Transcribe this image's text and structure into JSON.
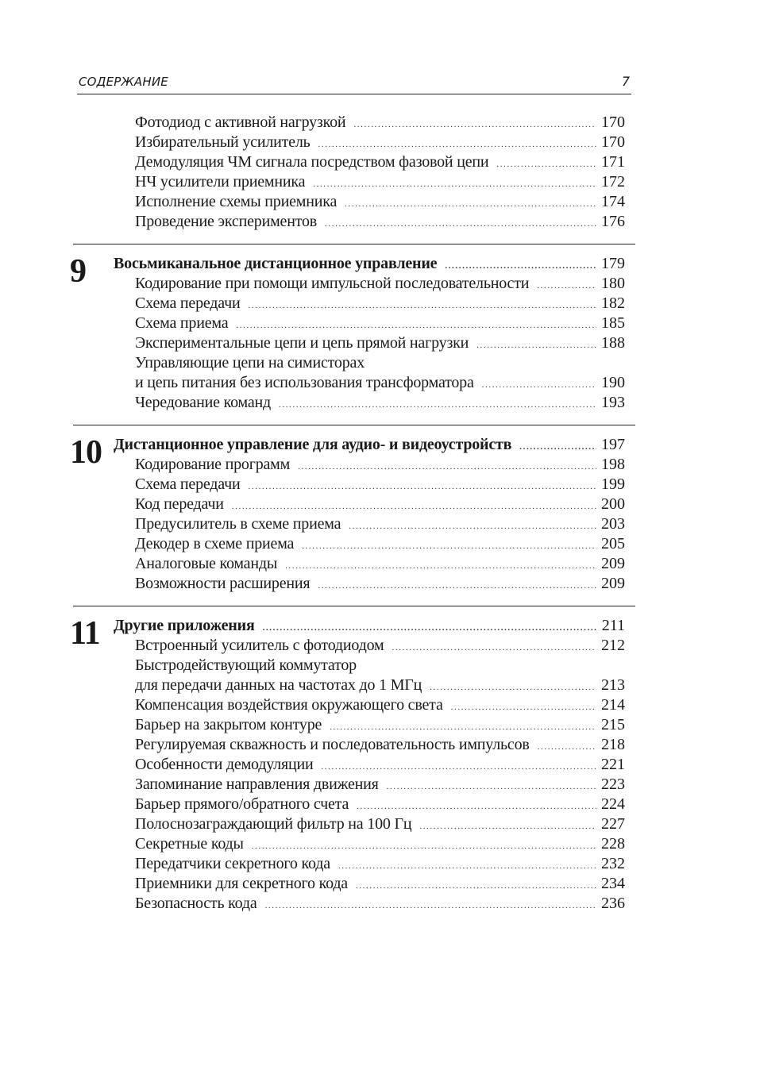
{
  "header": {
    "title": "СОДЕРЖАНИЕ",
    "page": "7"
  },
  "intro_entries": [
    {
      "lines": [
        "Фотодиод с активной нагрузкой"
      ],
      "page": "170"
    },
    {
      "lines": [
        "Избирательный усилитель"
      ],
      "page": "170"
    },
    {
      "lines": [
        "Демодуляция ЧМ сигнала посредством фазовой цепи"
      ],
      "page": "171"
    },
    {
      "lines": [
        "НЧ усилители приемника"
      ],
      "page": "172"
    },
    {
      "lines": [
        "Исполнение схемы приемника"
      ],
      "page": "174"
    },
    {
      "lines": [
        "Проведение экспериментов"
      ],
      "page": "176"
    }
  ],
  "chapters": [
    {
      "number": "9",
      "title": "Восьмиканальное дистанционное управление",
      "page": "179",
      "entries": [
        {
          "lines": [
            "Кодирование при помощи импульсной последовательности"
          ],
          "page": "180"
        },
        {
          "lines": [
            "Схема передачи"
          ],
          "page": "182"
        },
        {
          "lines": [
            "Схема приема"
          ],
          "page": "185"
        },
        {
          "lines": [
            "Экспериментальные цепи и цепь прямой нагрузки"
          ],
          "page": "188"
        },
        {
          "lines": [
            "Управляющие цепи на симисторах",
            "и цепь питания без использования трансформатора"
          ],
          "page": "190"
        },
        {
          "lines": [
            "Чередование команд"
          ],
          "page": "193"
        }
      ]
    },
    {
      "number": "10",
      "title": "Дистанционное управление для аудио- и видеоустройств",
      "page": "197",
      "entries": [
        {
          "lines": [
            "Кодирование программ"
          ],
          "page": "198"
        },
        {
          "lines": [
            "Схема передачи"
          ],
          "page": "199"
        },
        {
          "lines": [
            "Код передачи"
          ],
          "page": "200"
        },
        {
          "lines": [
            "Предусилитель в схеме приема"
          ],
          "page": "203"
        },
        {
          "lines": [
            "Декодер в схеме приема"
          ],
          "page": "205"
        },
        {
          "lines": [
            "Аналоговые команды"
          ],
          "page": "209"
        },
        {
          "lines": [
            "Возможности расширения"
          ],
          "page": "209"
        }
      ]
    },
    {
      "number": "11",
      "title": "Другие приложения",
      "page": "211",
      "entries": [
        {
          "lines": [
            "Встроенный усилитель с фотодиодом"
          ],
          "page": "212"
        },
        {
          "lines": [
            "Быстродействующий коммутатор",
            "для передачи данных на частотах до 1 МГц"
          ],
          "page": "213"
        },
        {
          "lines": [
            "Компенсация воздействия окружающего света"
          ],
          "page": "214"
        },
        {
          "lines": [
            "Барьер на закрытом контуре"
          ],
          "page": "215"
        },
        {
          "lines": [
            "Регулируемая скважность и последовательность импульсов"
          ],
          "page": "218"
        },
        {
          "lines": [
            "Особенности демодуляции"
          ],
          "page": "221"
        },
        {
          "lines": [
            "Запоминание направления движения"
          ],
          "page": "223"
        },
        {
          "lines": [
            "Барьер прямого/обратного счета"
          ],
          "page": "224"
        },
        {
          "lines": [
            "Полоснозаграждающий фильтр на 100 Гц"
          ],
          "page": "227"
        },
        {
          "lines": [
            "Секретные коды"
          ],
          "page": "228"
        },
        {
          "lines": [
            "Передатчики секретного кода"
          ],
          "page": "232"
        },
        {
          "lines": [
            "Приемники для секретного кода"
          ],
          "page": "234"
        },
        {
          "lines": [
            "Безопасность кода"
          ],
          "page": "236"
        }
      ]
    }
  ]
}
